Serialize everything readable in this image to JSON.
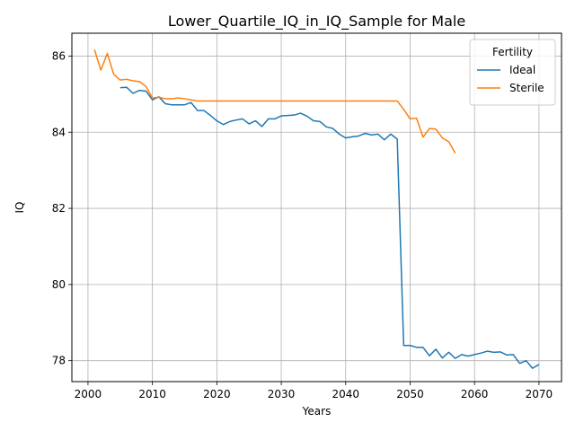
{
  "chart_data": {
    "type": "line",
    "title": "Lower_Quartile_IQ_in_IQ_Sample for Male",
    "xlabel": "Years",
    "ylabel": "IQ",
    "xlim": [
      1997.5,
      2073.5
    ],
    "ylim": [
      77.45,
      86.6
    ],
    "xticks": [
      "2000",
      "2010",
      "2020",
      "2030",
      "2040",
      "2050",
      "2060",
      "2070"
    ],
    "yticks": [
      "78",
      "80",
      "82",
      "84",
      "86"
    ],
    "grid": true,
    "legend": {
      "title": "Fertility",
      "position": "top-right"
    },
    "series": [
      {
        "name": "Ideal",
        "color": "#1f77b4",
        "x": [
          2005,
          2006,
          2007,
          2008,
          2009,
          2010,
          2011,
          2012,
          2013,
          2014,
          2015,
          2016,
          2017,
          2018,
          2019,
          2020,
          2021,
          2022,
          2023,
          2024,
          2025,
          2026,
          2027,
          2028,
          2029,
          2030,
          2031,
          2032,
          2033,
          2034,
          2035,
          2036,
          2037,
          2038,
          2039,
          2040,
          2041,
          2042,
          2043,
          2044,
          2045,
          2046,
          2047,
          2048,
          2049,
          2050,
          2051,
          2052,
          2053,
          2054,
          2055,
          2056,
          2057,
          2058,
          2059,
          2060,
          2061,
          2062,
          2063,
          2064,
          2065,
          2066,
          2067,
          2068,
          2069,
          2070
        ],
        "y": [
          85.17,
          85.18,
          85.02,
          85.1,
          85.08,
          84.85,
          84.93,
          84.75,
          84.72,
          84.72,
          84.72,
          84.78,
          84.57,
          84.57,
          84.44,
          84.3,
          84.2,
          84.28,
          84.32,
          84.35,
          84.22,
          84.3,
          84.15,
          84.35,
          84.35,
          84.43,
          84.44,
          84.45,
          84.5,
          84.42,
          84.3,
          84.28,
          84.14,
          84.1,
          83.95,
          83.85,
          83.88,
          83.9,
          83.97,
          83.93,
          83.95,
          83.8,
          83.95,
          83.82,
          78.4,
          78.4,
          78.35,
          78.35,
          78.13,
          78.3,
          78.07,
          78.22,
          78.06,
          78.16,
          78.12,
          78.16,
          78.2,
          78.25,
          78.22,
          78.23,
          78.15,
          78.16,
          77.93,
          78.0,
          77.8,
          77.9
        ]
      },
      {
        "name": "Sterile",
        "color": "#ff7f0e",
        "x": [
          2001,
          2002,
          2003,
          2004,
          2005,
          2006,
          2007,
          2008,
          2009,
          2010,
          2011,
          2012,
          2013,
          2014,
          2015,
          2016,
          2017,
          2018,
          2019,
          2020,
          2021,
          2022,
          2023,
          2024,
          2025,
          2026,
          2027,
          2028,
          2029,
          2030,
          2031,
          2032,
          2033,
          2034,
          2035,
          2036,
          2037,
          2038,
          2039,
          2040,
          2041,
          2042,
          2043,
          2044,
          2045,
          2046,
          2047,
          2048,
          2049,
          2050,
          2051,
          2052,
          2053,
          2054,
          2055,
          2056,
          2057
        ],
        "y": [
          86.17,
          85.63,
          86.07,
          85.52,
          85.37,
          85.39,
          85.35,
          85.33,
          85.2,
          84.9,
          84.92,
          84.88,
          84.88,
          84.9,
          84.88,
          84.85,
          84.82,
          84.82,
          84.82,
          84.82,
          84.82,
          84.82,
          84.82,
          84.82,
          84.82,
          84.82,
          84.82,
          84.82,
          84.82,
          84.82,
          84.82,
          84.82,
          84.82,
          84.82,
          84.82,
          84.82,
          84.82,
          84.82,
          84.82,
          84.82,
          84.82,
          84.82,
          84.82,
          84.82,
          84.82,
          84.82,
          84.82,
          84.82,
          84.6,
          84.35,
          84.37,
          83.87,
          84.1,
          84.08,
          83.85,
          83.75,
          83.45
        ]
      }
    ]
  }
}
